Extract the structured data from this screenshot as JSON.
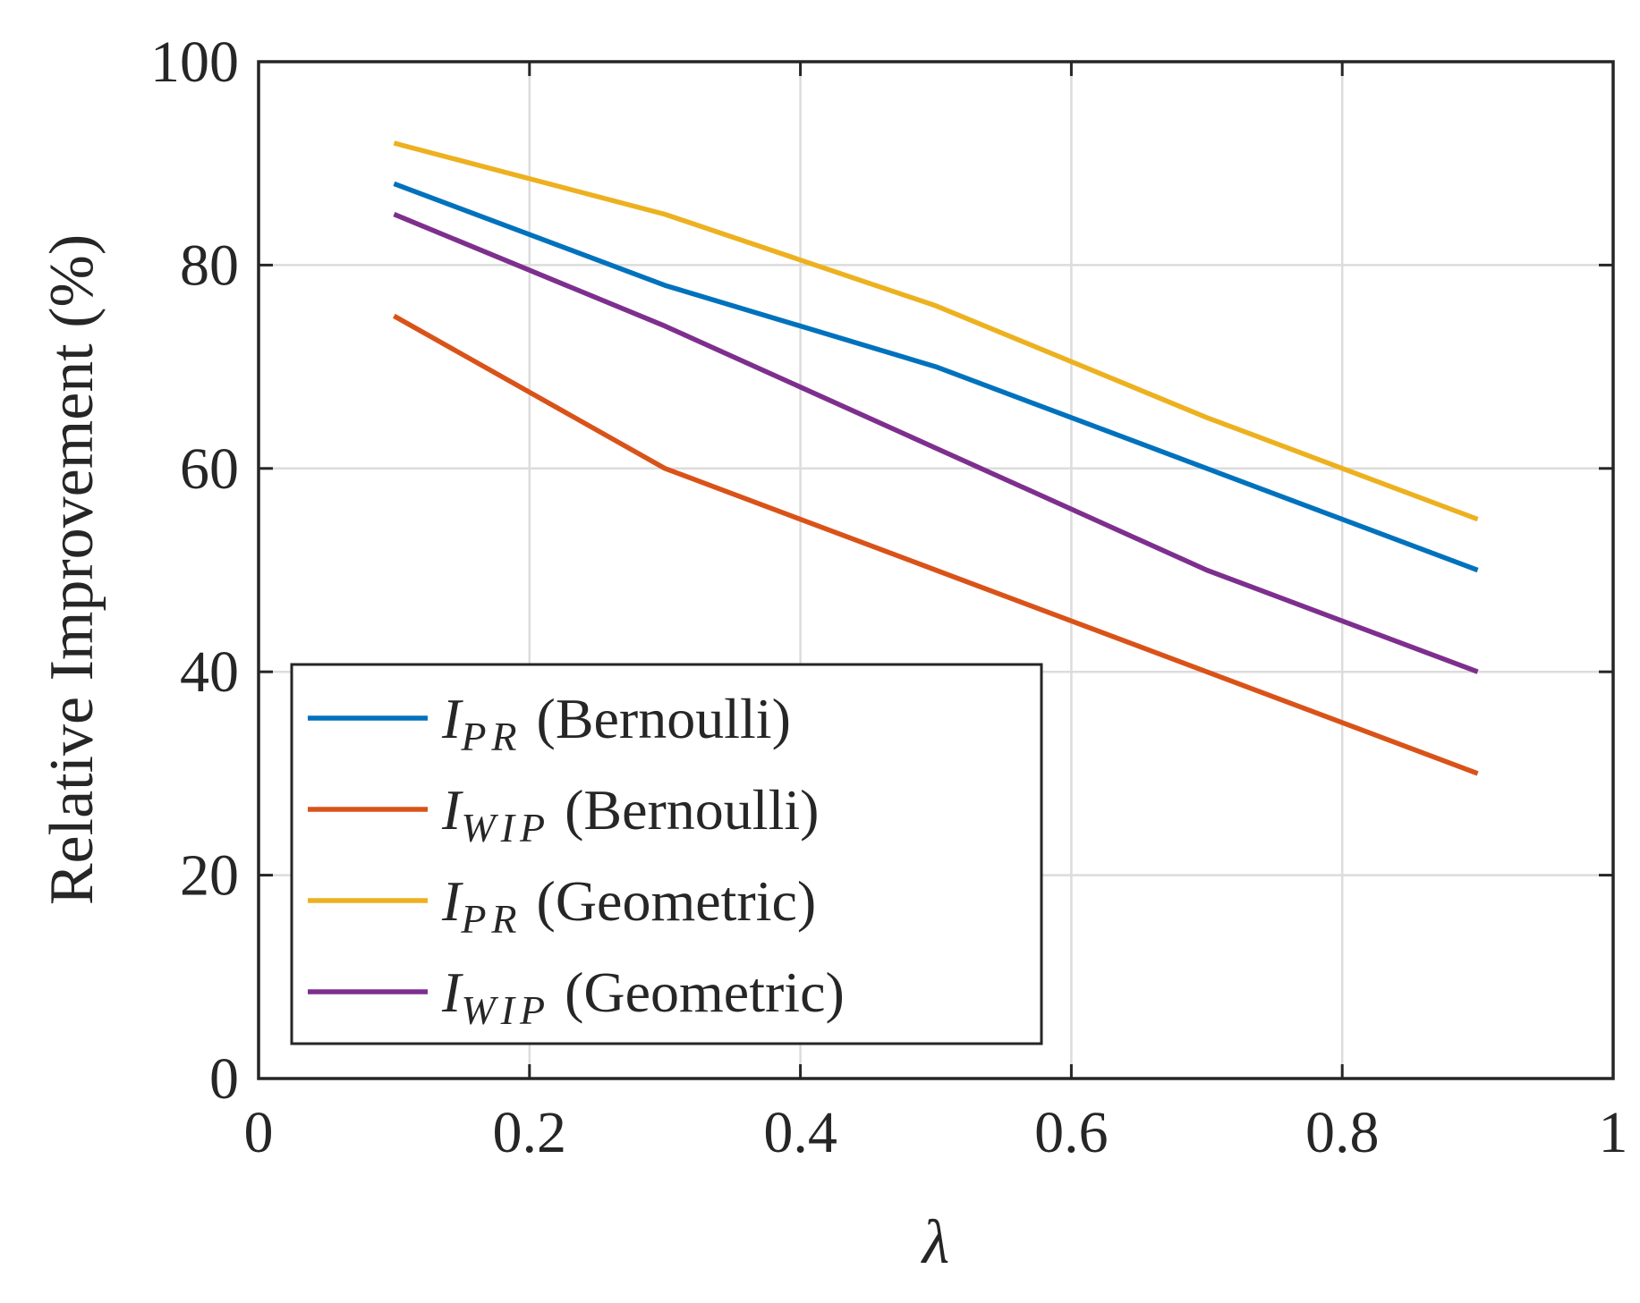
{
  "chart_data": {
    "type": "line",
    "title": "",
    "xlabel": "λ",
    "ylabel": "Relative Improvement (%)",
    "xlim": [
      0,
      1
    ],
    "ylim": [
      0,
      100
    ],
    "xticks": [
      0,
      0.2,
      0.4,
      0.6,
      0.8,
      1
    ],
    "xtick_labels": [
      "0",
      "0.2",
      "0.4",
      "0.6",
      "0.8",
      "1"
    ],
    "yticks": [
      0,
      20,
      40,
      60,
      80,
      100
    ],
    "ytick_labels": [
      "0",
      "20",
      "40",
      "60",
      "80",
      "100"
    ],
    "grid": true,
    "legend_position": "bottom-left",
    "x": [
      0.1,
      0.3,
      0.5,
      0.7,
      0.9
    ],
    "series": [
      {
        "name": "I_PR (Bernoulli)",
        "symbol": "I",
        "subscript": "PR",
        "label_suffix": "(Bernoulli)",
        "color": "#0072BD",
        "values": [
          88,
          78,
          70,
          60,
          50
        ]
      },
      {
        "name": "I_WIP (Bernoulli)",
        "symbol": "I",
        "subscript": "WIP",
        "label_suffix": "(Bernoulli)",
        "color": "#D95319",
        "values": [
          75,
          60,
          50,
          40,
          30
        ]
      },
      {
        "name": "I_PR (Geometric)",
        "symbol": "I",
        "subscript": "PR",
        "label_suffix": "(Geometric)",
        "color": "#EDB120",
        "values": [
          92,
          85,
          76,
          65,
          55
        ]
      },
      {
        "name": "I_WIP (Geometric)",
        "symbol": "I",
        "subscript": "WIP",
        "label_suffix": "(Geometric)",
        "color": "#7E2F8E",
        "values": [
          85,
          74,
          62,
          50,
          40
        ]
      }
    ]
  }
}
